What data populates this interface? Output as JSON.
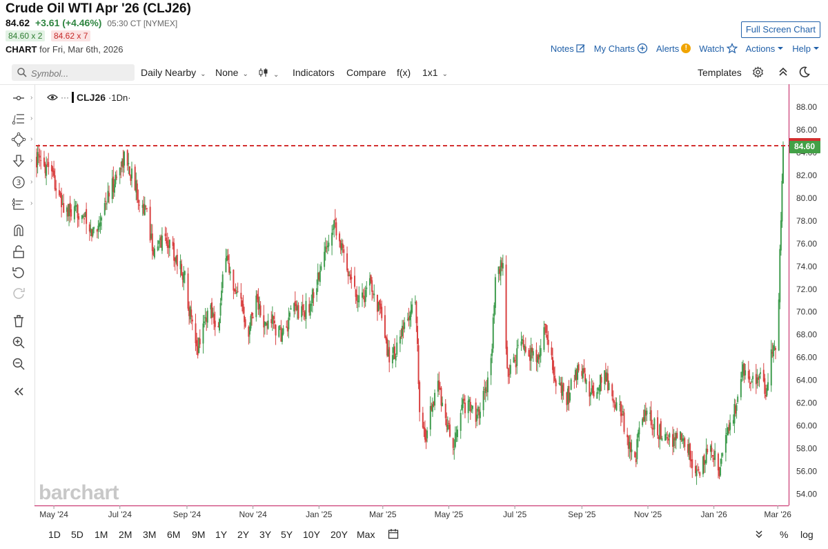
{
  "header": {
    "title": "Crude Oil WTI Apr '26 (CLJ26)",
    "last": "84.62",
    "change": "+3.61 (+4.46%)",
    "time": "05:30 CT [NYMEX]",
    "bid": "84.60 x 2",
    "ask": "84.62 x 7",
    "chart_label": "CHART",
    "chart_date": "for Fri, Mar 6th, 2026",
    "fullscreen_label": "Full Screen Chart",
    "links": {
      "notes": "Notes",
      "mycharts": "My Charts",
      "alerts": "Alerts",
      "watch": "Watch",
      "actions": "Actions",
      "help": "Help"
    }
  },
  "toolbar": {
    "symbol_placeholder": "Symbol...",
    "period": "Daily Nearby",
    "study": "None",
    "indicators": "Indicators",
    "compare": "Compare",
    "fx": "f(x)",
    "layout": "1x1",
    "templates": "Templates"
  },
  "legend": {
    "dots": "···",
    "symbol": "CLJ26",
    "interval": "·1Dn·"
  },
  "watermark": "barchart",
  "bottom": {
    "ranges": [
      "1D",
      "5D",
      "1M",
      "2M",
      "3M",
      "6M",
      "9M",
      "1Y",
      "2Y",
      "3Y",
      "5Y",
      "10Y",
      "20Y",
      "Max"
    ],
    "percent": "%",
    "log": "log"
  },
  "colors": {
    "up": "#3f9c4e",
    "down": "#d94141",
    "price_line": "#d32f2f",
    "price_tag": "#43a047",
    "accent": "#1f5fa8"
  },
  "chart_data": {
    "type": "candlestick",
    "title": "",
    "ylim": [
      53,
      90
    ],
    "y_ticks": [
      54,
      56,
      58,
      60,
      62,
      64,
      66,
      68,
      70,
      72,
      74,
      76,
      78,
      80,
      82,
      84,
      86,
      88
    ],
    "x_tick_labels": [
      "May '24",
      "Jul '24",
      "Sep '24",
      "Nov '24",
      "Jan '25",
      "Mar '25",
      "May '25",
      "Jul '25",
      "Sep '25",
      "Nov '25",
      "Jan '26",
      "Mar '26"
    ],
    "x_tick_dates": [
      "2024-05-01",
      "2024-07-01",
      "2024-09-01",
      "2024-11-01",
      "2025-01-01",
      "2025-03-01",
      "2025-05-01",
      "2025-07-01",
      "2025-09-01",
      "2025-11-01",
      "2026-01-01",
      "2026-03-01"
    ],
    "x_range": [
      "2024-04-15",
      "2026-03-06"
    ],
    "current_price": 84.6,
    "current_price_label": "84.60",
    "grid": false,
    "close_path": [
      [
        "2024-04-15",
        83.5
      ],
      [
        "2024-04-20",
        82.8
      ],
      [
        "2024-04-28",
        83.3
      ],
      [
        "2024-05-05",
        80.0
      ],
      [
        "2024-05-12",
        78.8
      ],
      [
        "2024-05-20",
        78.5
      ],
      [
        "2024-05-27",
        79.0
      ],
      [
        "2024-06-03",
        76.8
      ],
      [
        "2024-06-10",
        77.5
      ],
      [
        "2024-06-17",
        79.5
      ],
      [
        "2024-06-24",
        81.0
      ],
      [
        "2024-07-05",
        83.6
      ],
      [
        "2024-07-12",
        82.0
      ],
      [
        "2024-07-19",
        80.0
      ],
      [
        "2024-07-26",
        78.5
      ],
      [
        "2024-08-02",
        75.0
      ],
      [
        "2024-08-09",
        76.5
      ],
      [
        "2024-08-16",
        76.0
      ],
      [
        "2024-08-23",
        74.5
      ],
      [
        "2024-08-30",
        73.0
      ],
      [
        "2024-09-06",
        68.5
      ],
      [
        "2024-09-10",
        66.5
      ],
      [
        "2024-09-16",
        69.0
      ],
      [
        "2024-09-23",
        70.5
      ],
      [
        "2024-09-30",
        68.5
      ],
      [
        "2024-10-07",
        75.5
      ],
      [
        "2024-10-14",
        71.5
      ],
      [
        "2024-10-21",
        70.8
      ],
      [
        "2024-10-28",
        68.5
      ],
      [
        "2024-11-04",
        71.5
      ],
      [
        "2024-11-11",
        68.5
      ],
      [
        "2024-11-18",
        69.5
      ],
      [
        "2024-11-25",
        68.0
      ],
      [
        "2024-12-02",
        68.3
      ],
      [
        "2024-12-09",
        70.5
      ],
      [
        "2024-12-16",
        69.8
      ],
      [
        "2024-12-23",
        70.5
      ],
      [
        "2025-01-02",
        73.5
      ],
      [
        "2025-01-10",
        76.5
      ],
      [
        "2025-01-15",
        78.3
      ],
      [
        "2025-01-22",
        75.5
      ],
      [
        "2025-01-29",
        73.5
      ],
      [
        "2025-02-05",
        71.5
      ],
      [
        "2025-02-12",
        71.5
      ],
      [
        "2025-02-19",
        72.5
      ],
      [
        "2025-02-26",
        70.0
      ],
      [
        "2025-03-05",
        66.5
      ],
      [
        "2025-03-10",
        66.0
      ],
      [
        "2025-03-17",
        67.5
      ],
      [
        "2025-03-24",
        69.3
      ],
      [
        "2025-03-31",
        71.3
      ],
      [
        "2025-04-04",
        62.0
      ],
      [
        "2025-04-09",
        58.5
      ],
      [
        "2025-04-14",
        61.5
      ],
      [
        "2025-04-21",
        63.5
      ],
      [
        "2025-04-28",
        61.0
      ],
      [
        "2025-05-05",
        57.5
      ],
      [
        "2025-05-12",
        61.5
      ],
      [
        "2025-05-19",
        62.0
      ],
      [
        "2025-05-26",
        61.0
      ],
      [
        "2025-06-02",
        62.5
      ],
      [
        "2025-06-09",
        65.5
      ],
      [
        "2025-06-13",
        72.5
      ],
      [
        "2025-06-20",
        74.5
      ],
      [
        "2025-06-24",
        64.5
      ],
      [
        "2025-07-01",
        65.5
      ],
      [
        "2025-07-08",
        67.5
      ],
      [
        "2025-07-15",
        66.5
      ],
      [
        "2025-07-22",
        65.5
      ],
      [
        "2025-07-29",
        69.0
      ],
      [
        "2025-08-05",
        65.0
      ],
      [
        "2025-08-12",
        63.0
      ],
      [
        "2025-08-19",
        62.5
      ],
      [
        "2025-08-26",
        64.5
      ],
      [
        "2025-09-02",
        65.0
      ],
      [
        "2025-09-09",
        62.5
      ],
      [
        "2025-09-16",
        63.5
      ],
      [
        "2025-09-23",
        64.5
      ],
      [
        "2025-09-30",
        62.0
      ],
      [
        "2025-10-07",
        61.5
      ],
      [
        "2025-10-14",
        58.5
      ],
      [
        "2025-10-20",
        57.0
      ],
      [
        "2025-10-27",
        61.0
      ],
      [
        "2025-11-03",
        60.5
      ],
      [
        "2025-11-10",
        59.5
      ],
      [
        "2025-11-17",
        59.0
      ],
      [
        "2025-11-24",
        58.5
      ],
      [
        "2025-12-01",
        59.0
      ],
      [
        "2025-12-08",
        58.0
      ],
      [
        "2025-12-15",
        55.5
      ],
      [
        "2025-12-19",
        56.0
      ],
      [
        "2025-12-26",
        57.5
      ],
      [
        "2026-01-02",
        57.5
      ],
      [
        "2026-01-07",
        56.0
      ],
      [
        "2026-01-14",
        60.0
      ],
      [
        "2026-01-21",
        61.5
      ],
      [
        "2026-01-28",
        65.0
      ],
      [
        "2026-02-04",
        63.5
      ],
      [
        "2026-02-11",
        64.5
      ],
      [
        "2026-02-18",
        63.0
      ],
      [
        "2026-02-24",
        66.5
      ],
      [
        "2026-02-28",
        67.0
      ],
      [
        "2026-03-02",
        71.0
      ],
      [
        "2026-03-03",
        75.0
      ],
      [
        "2026-03-04",
        78.5
      ],
      [
        "2026-03-05",
        81.0
      ],
      [
        "2026-03-06",
        84.62
      ]
    ]
  }
}
